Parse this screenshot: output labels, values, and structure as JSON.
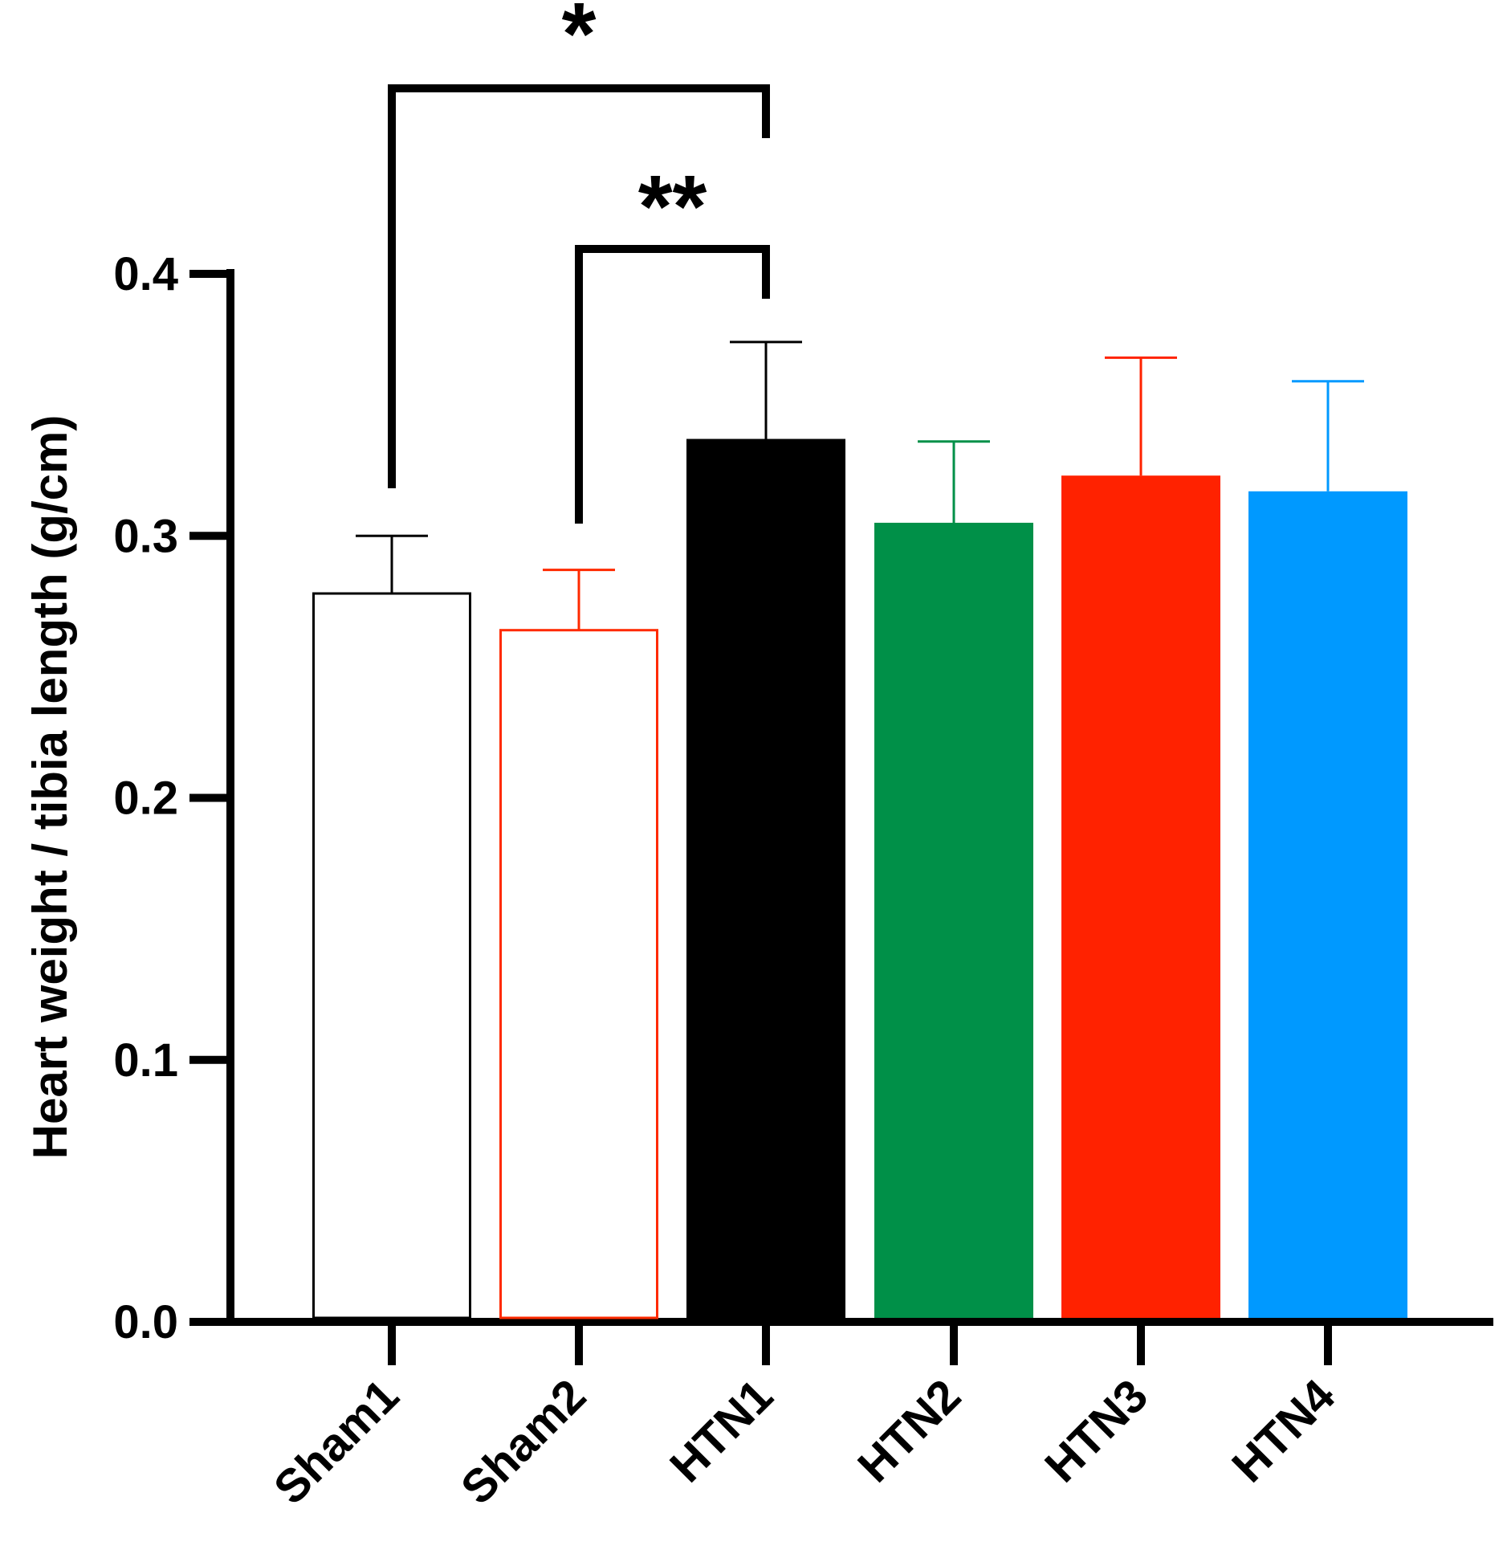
{
  "chart_data": {
    "type": "bar",
    "title": "",
    "xlabel": "",
    "ylabel": "Heart weight / tibia length (g/cm)",
    "ylim": [
      0,
      0.4
    ],
    "yticks": [
      "0.0",
      "0.1",
      "0.2",
      "0.3",
      "0.4"
    ],
    "yticks_values": [
      0,
      0.1,
      0.2,
      0.3,
      0.4
    ],
    "categories": [
      "Sham1",
      "Sham2",
      "HTN1",
      "HTN2",
      "HTN3",
      "HTN4"
    ],
    "values": [
      0.278,
      0.264,
      0.337,
      0.305,
      0.323,
      0.317
    ],
    "errors": [
      0.022,
      0.023,
      0.037,
      0.031,
      0.045,
      0.042
    ],
    "colors": [
      "#000000",
      "#ff2a00",
      "#000000",
      "#009048",
      "#ff2200",
      "#0099ff"
    ],
    "filled": [
      false,
      false,
      true,
      true,
      true,
      true
    ],
    "significance": [
      {
        "from": 0,
        "to": 2,
        "label": "*"
      },
      {
        "from": 1,
        "to": 2,
        "label": "**"
      }
    ],
    "grid": false,
    "legend": "none"
  }
}
